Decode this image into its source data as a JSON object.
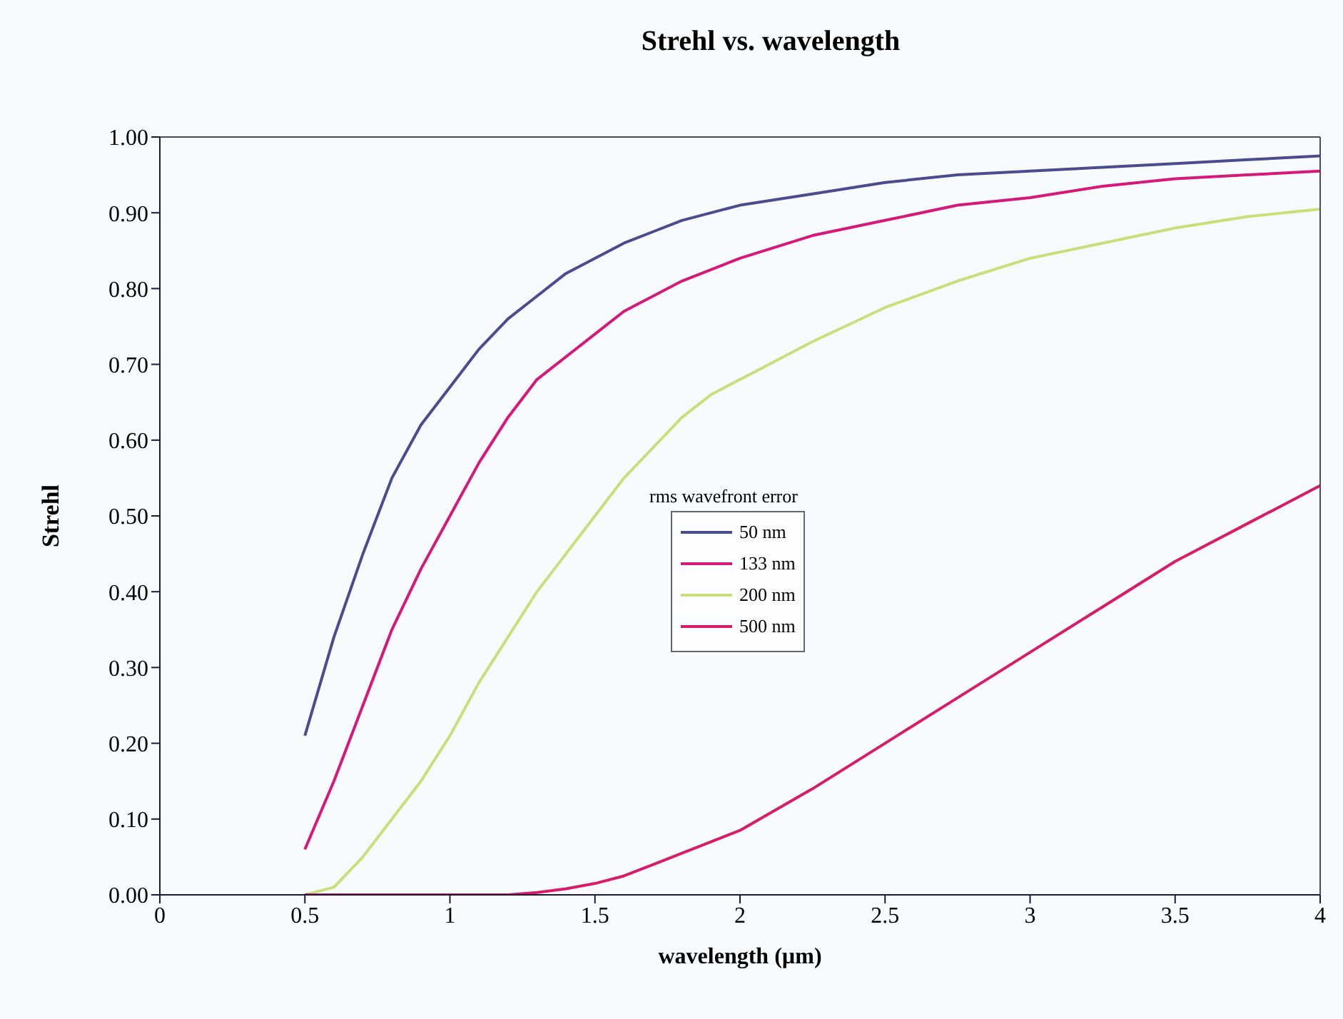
{
  "chart_data": {
    "type": "line",
    "title": "Strehl vs. wavelength",
    "xlabel": "wavelength (µm)",
    "ylabel": "Strehl",
    "legend_title": "rms wavefront error",
    "legend": "center",
    "grid": false,
    "marker": "none",
    "line_style": "solid",
    "xlim": [
      0,
      4
    ],
    "xticks": [
      0,
      0.5,
      1,
      1.5,
      2,
      2.5,
      3,
      3.5,
      4
    ],
    "ylim": [
      0,
      1
    ],
    "yticks": [
      {
        "value": 0,
        "label": "0.00"
      },
      {
        "value": 0.1,
        "label": "0.10"
      },
      {
        "value": 0.2,
        "label": "0.20"
      },
      {
        "value": 0.3,
        "label": "0.30"
      },
      {
        "value": 0.4,
        "label": "0.40"
      },
      {
        "value": 0.5,
        "label": "0.50"
      },
      {
        "value": 0.6,
        "label": "0.60"
      },
      {
        "value": 0.7,
        "label": "0.70"
      },
      {
        "value": 0.8,
        "label": "0.80"
      },
      {
        "value": 0.9,
        "label": "0.90"
      },
      {
        "value": 1,
        "label": "1.00"
      }
    ],
    "series": [
      {
        "name": "50 nm",
        "color": "#4b4b8f",
        "x": [
          0.5,
          0.6,
          0.7,
          0.8,
          0.9,
          1.0,
          1.1,
          1.2,
          1.3,
          1.4,
          1.5,
          1.6,
          1.7,
          1.8,
          2.0,
          2.25,
          2.5,
          2.75,
          3.0,
          3.25,
          3.5,
          3.75,
          4.0
        ],
        "values": [
          0.21,
          0.34,
          0.45,
          0.55,
          0.62,
          0.67,
          0.72,
          0.76,
          0.79,
          0.82,
          0.84,
          0.86,
          0.875,
          0.89,
          0.91,
          0.925,
          0.94,
          0.95,
          0.955,
          0.96,
          0.965,
          0.97,
          0.975
        ]
      },
      {
        "name": "133 nm",
        "color": "#d6187a",
        "x": [
          0.5,
          0.6,
          0.7,
          0.8,
          0.9,
          1.0,
          1.1,
          1.2,
          1.3,
          1.4,
          1.5,
          1.6,
          1.8,
          2.0,
          2.25,
          2.5,
          2.75,
          3.0,
          3.25,
          3.5,
          3.75,
          4.0
        ],
        "values": [
          0.06,
          0.15,
          0.25,
          0.35,
          0.43,
          0.5,
          0.57,
          0.63,
          0.68,
          0.71,
          0.74,
          0.77,
          0.81,
          0.84,
          0.87,
          0.89,
          0.91,
          0.92,
          0.935,
          0.945,
          0.95,
          0.955
        ]
      },
      {
        "name": "200 nm",
        "color": "#c8df7a",
        "x": [
          0.5,
          0.6,
          0.7,
          0.8,
          0.9,
          1.0,
          1.1,
          1.2,
          1.3,
          1.4,
          1.5,
          1.6,
          1.7,
          1.8,
          1.9,
          2.0,
          2.25,
          2.5,
          2.75,
          3.0,
          3.25,
          3.5,
          3.75,
          4.0
        ],
        "values": [
          0.0,
          0.01,
          0.05,
          0.1,
          0.15,
          0.21,
          0.28,
          0.34,
          0.4,
          0.45,
          0.5,
          0.55,
          0.59,
          0.63,
          0.66,
          0.68,
          0.73,
          0.775,
          0.81,
          0.84,
          0.86,
          0.88,
          0.895,
          0.905
        ]
      },
      {
        "name": "500 nm",
        "color": "#d81c6a",
        "x": [
          0.5,
          1.0,
          1.2,
          1.3,
          1.4,
          1.5,
          1.6,
          1.7,
          1.8,
          1.9,
          2.0,
          2.25,
          2.5,
          2.75,
          3.0,
          3.25,
          3.5,
          3.75,
          4.0
        ],
        "values": [
          0.0,
          0.0,
          0.0,
          0.003,
          0.008,
          0.015,
          0.025,
          0.04,
          0.055,
          0.07,
          0.085,
          0.14,
          0.2,
          0.26,
          0.32,
          0.38,
          0.44,
          0.49,
          0.54
        ]
      }
    ]
  }
}
